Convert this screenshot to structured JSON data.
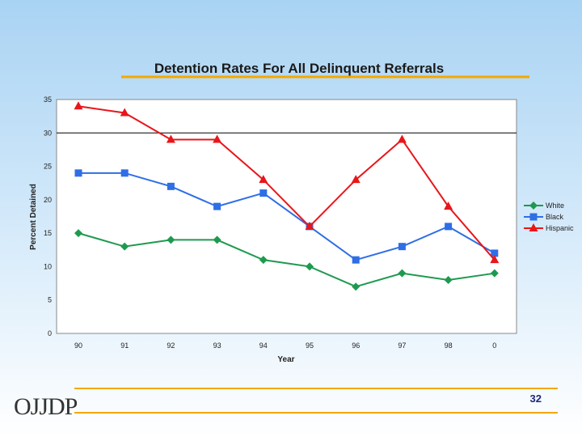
{
  "chart_data": {
    "type": "line",
    "title": "Detention Rates For All Delinquent Referrals",
    "xlabel": "Year",
    "ylabel": "Percent Detained",
    "categories": [
      "90",
      "91",
      "92",
      "93",
      "94",
      "95",
      "96",
      "97",
      "98",
      "0"
    ],
    "ylim": [
      0,
      35
    ],
    "yticks": [
      0,
      5,
      10,
      15,
      20,
      25,
      30,
      35
    ],
    "series": [
      {
        "name": "White",
        "color": "#1e9a50",
        "marker": "diamond",
        "values": [
          15,
          13,
          14,
          14,
          11,
          10,
          7,
          9,
          8,
          9
        ]
      },
      {
        "name": "Black",
        "color": "#2e6ee6",
        "marker": "square",
        "values": [
          24,
          24,
          22,
          19,
          21,
          16,
          11,
          13,
          16,
          12
        ]
      },
      {
        "name": "Hispanic",
        "color": "#e8161a",
        "marker": "triangle",
        "values": [
          34,
          33,
          29,
          29,
          23,
          16,
          23,
          29,
          19,
          11
        ]
      }
    ],
    "legend_position": "right"
  },
  "footer": {
    "logo": "OJJDP",
    "page_number": "32"
  },
  "colors": {
    "accent_line": "#f5a800"
  }
}
